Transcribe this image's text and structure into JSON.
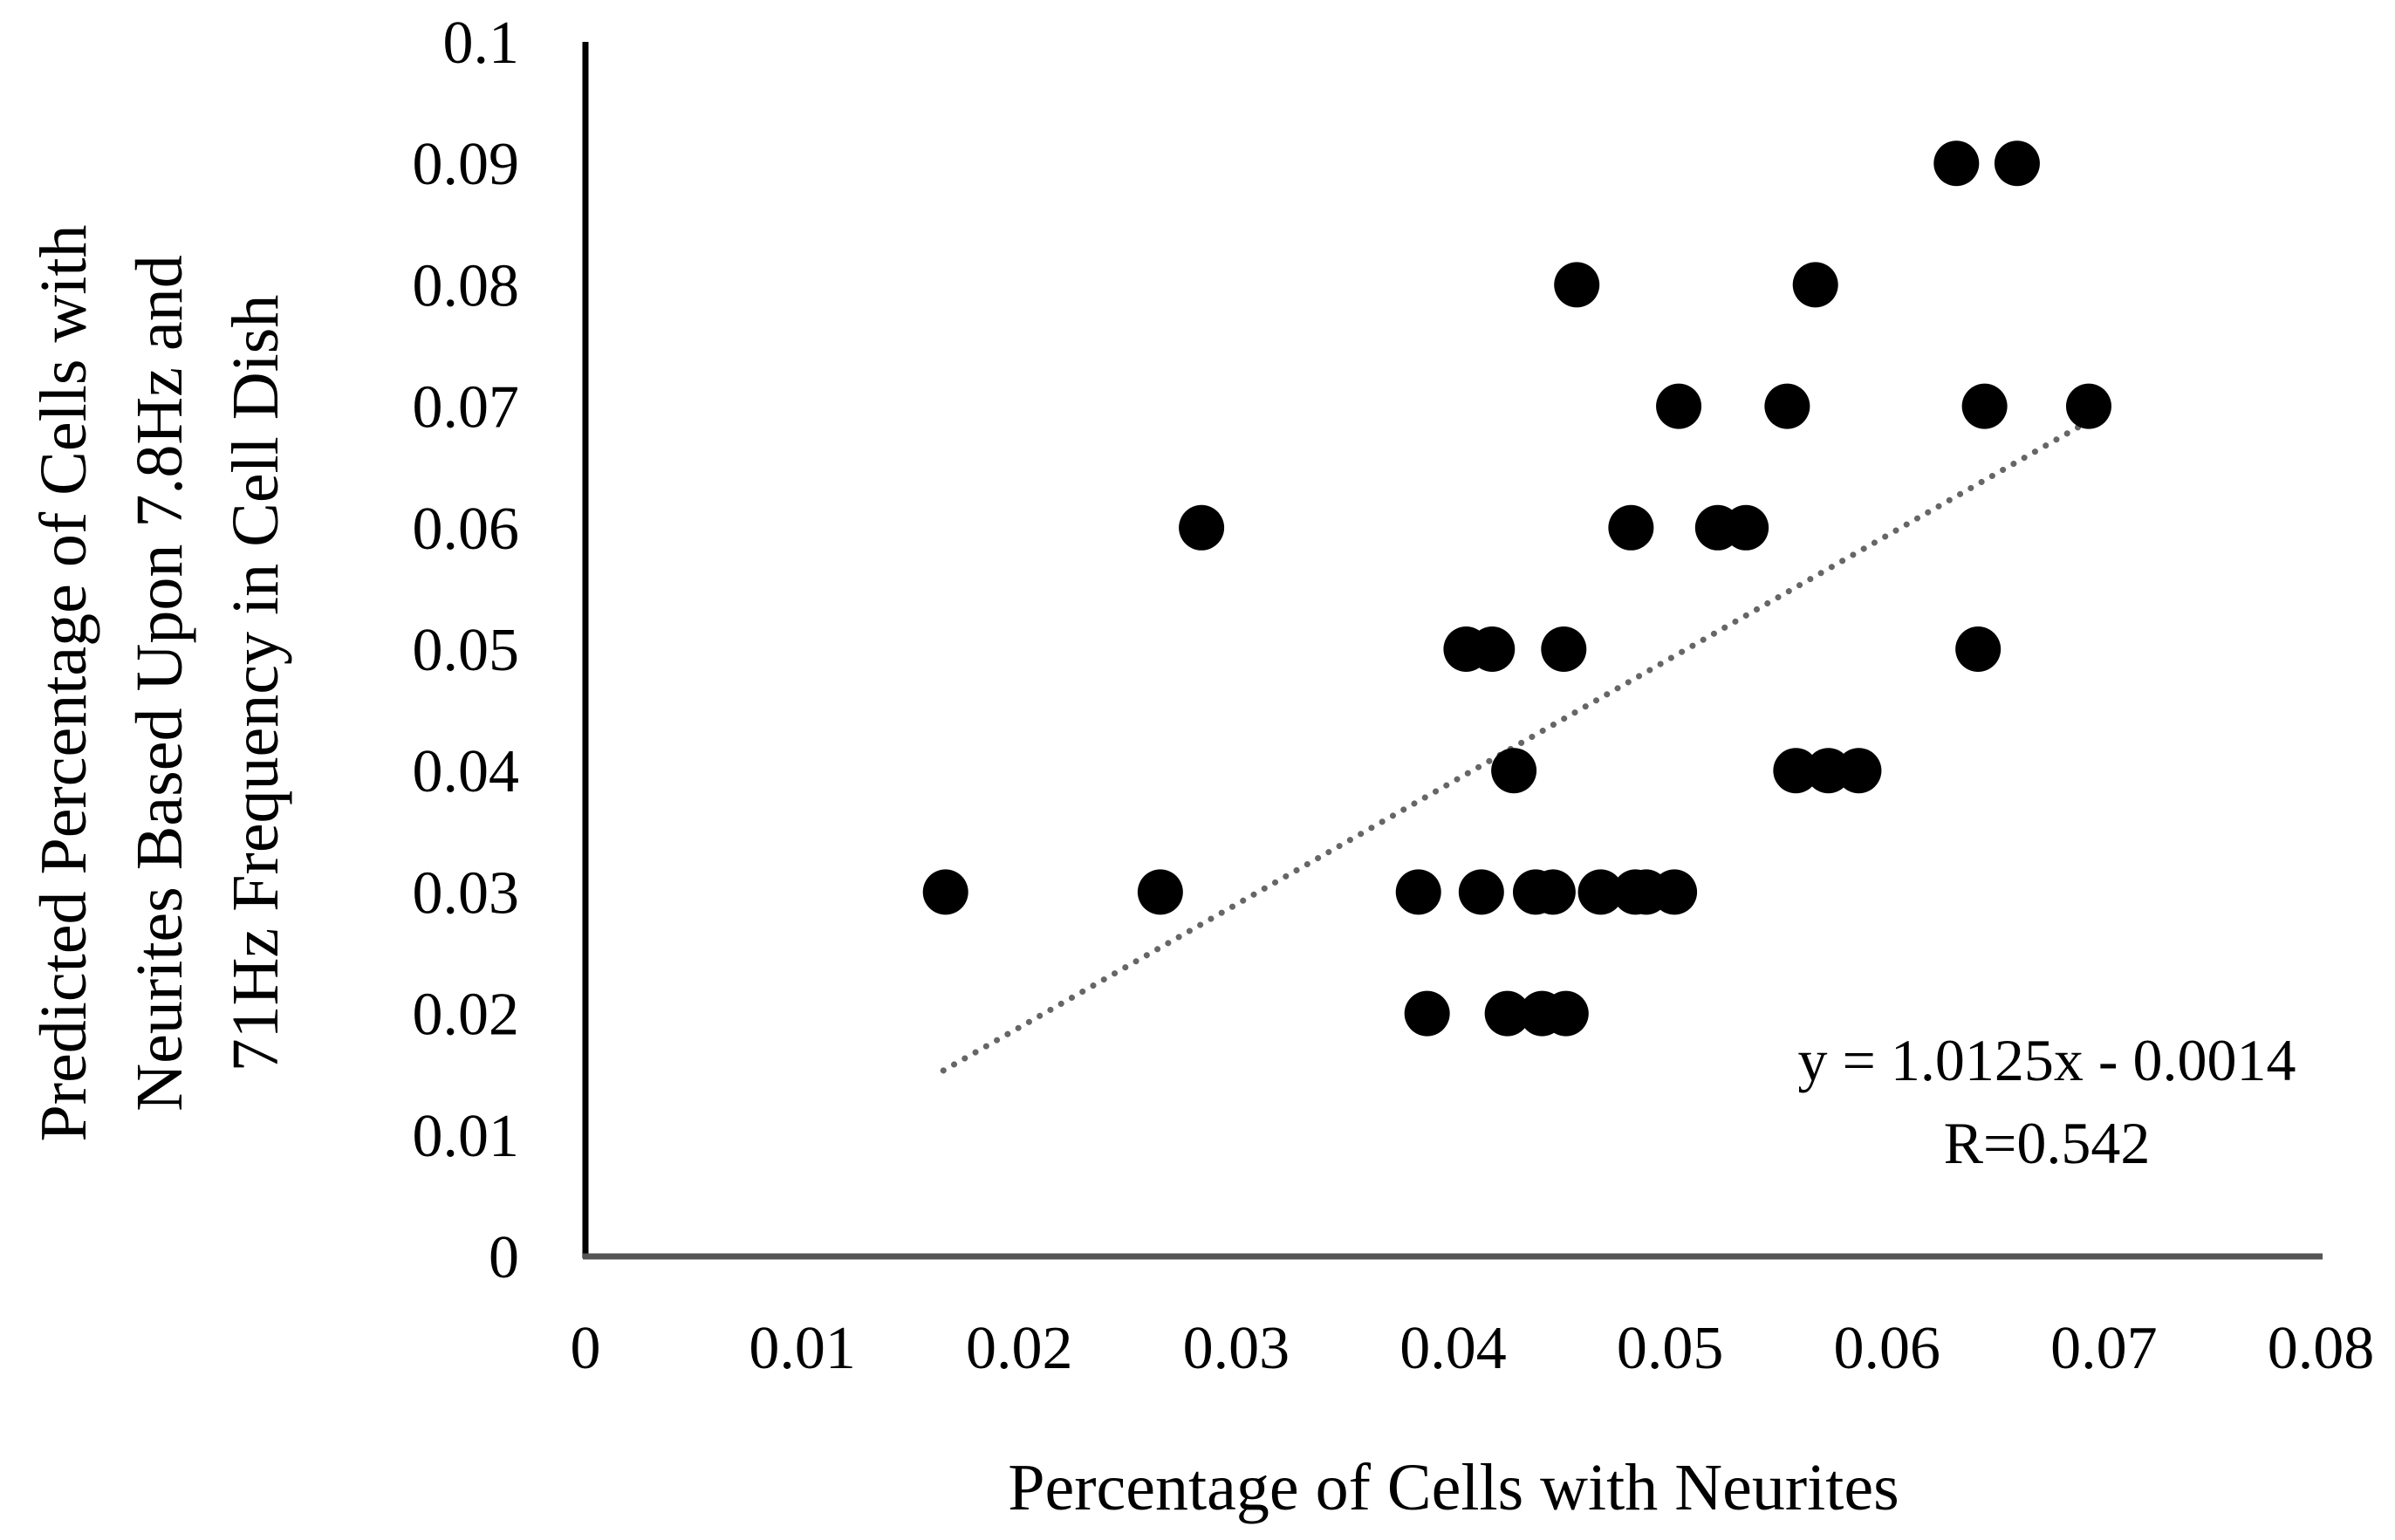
{
  "chart_data": {
    "type": "scatter",
    "title": "",
    "xlabel": "Percentage of Cells with Neurites",
    "ylabel_lines": [
      "Predicted Percentage of Cells with",
      "Neurites Based Upon 7.8Hz and",
      "71Hz Frequency in Cell Dish"
    ],
    "xlim": [
      0,
      0.08
    ],
    "ylim": [
      0,
      0.1
    ],
    "x_ticks": [
      "0",
      "0.01",
      "0.02",
      "0.03",
      "0.04",
      "0.05",
      "0.06",
      "0.07",
      "0.08"
    ],
    "y_ticks": [
      "0",
      "0.01",
      "0.02",
      "0.03",
      "0.04",
      "0.05",
      "0.06",
      "0.07",
      "0.08",
      "0.09",
      "0.1"
    ],
    "grid": false,
    "marker_color": "#000000",
    "trendline_color": "#666666",
    "trendline": {
      "slope": 1.0125,
      "intercept": -0.0014,
      "x_range": [
        0.0165,
        0.0693
      ]
    },
    "annotations": [
      "y = 1.0125x - 0.0014",
      "R=0.542"
    ],
    "points": [
      {
        "x": 0.0166,
        "y": 0.03
      },
      {
        "x": 0.0265,
        "y": 0.03
      },
      {
        "x": 0.0284,
        "y": 0.06
      },
      {
        "x": 0.0384,
        "y": 0.03
      },
      {
        "x": 0.0388,
        "y": 0.02
      },
      {
        "x": 0.0406,
        "y": 0.05
      },
      {
        "x": 0.0413,
        "y": 0.03
      },
      {
        "x": 0.0418,
        "y": 0.05
      },
      {
        "x": 0.0425,
        "y": 0.02
      },
      {
        "x": 0.0428,
        "y": 0.04
      },
      {
        "x": 0.0438,
        "y": 0.03
      },
      {
        "x": 0.0441,
        "y": 0.02
      },
      {
        "x": 0.0446,
        "y": 0.03
      },
      {
        "x": 0.0451,
        "y": 0.05
      },
      {
        "x": 0.0452,
        "y": 0.02
      },
      {
        "x": 0.0457,
        "y": 0.08
      },
      {
        "x": 0.0468,
        "y": 0.03
      },
      {
        "x": 0.0482,
        "y": 0.06
      },
      {
        "x": 0.0484,
        "y": 0.03
      },
      {
        "x": 0.0489,
        "y": 0.03
      },
      {
        "x": 0.0502,
        "y": 0.03
      },
      {
        "x": 0.0504,
        "y": 0.07
      },
      {
        "x": 0.0522,
        "y": 0.06
      },
      {
        "x": 0.0535,
        "y": 0.06
      },
      {
        "x": 0.0554,
        "y": 0.07
      },
      {
        "x": 0.0558,
        "y": 0.04
      },
      {
        "x": 0.0567,
        "y": 0.08
      },
      {
        "x": 0.0573,
        "y": 0.04
      },
      {
        "x": 0.0587,
        "y": 0.04
      },
      {
        "x": 0.0632,
        "y": 0.09
      },
      {
        "x": 0.0642,
        "y": 0.05
      },
      {
        "x": 0.0645,
        "y": 0.07
      },
      {
        "x": 0.066,
        "y": 0.09
      },
      {
        "x": 0.0693,
        "y": 0.07
      }
    ]
  }
}
